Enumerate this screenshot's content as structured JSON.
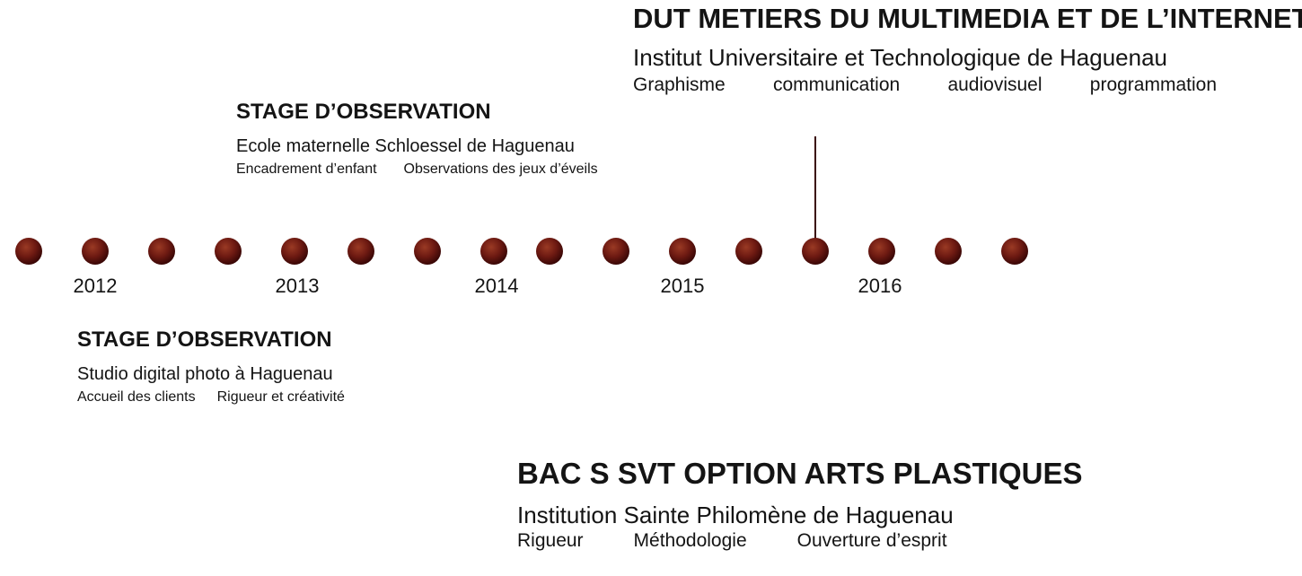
{
  "years": [
    "2012",
    "2013",
    "2014",
    "2015",
    "2016"
  ],
  "dot_count": 16,
  "colors": {
    "dot_dark": "#3a0706",
    "dot_mid": "#6e1a12",
    "dot_highlight": "#9a3a24",
    "connector": "#b5341d",
    "connector_dark": "#3a0a08",
    "text": "#141414"
  },
  "entries": {
    "dut": {
      "title": "DUT METIERS DU MULTIMEDIA ET DE L’INTERNET",
      "subtitle": "Institut Universitaire et Technologique de Haguenau",
      "skills": [
        "Graphisme",
        "communication",
        "audiovisuel",
        "programmation"
      ]
    },
    "stage_ecole": {
      "title": "STAGE D’OBSERVATION",
      "subtitle": "Ecole maternelle Schloessel de Haguenau",
      "skills": [
        "Encadrement d’enfant",
        "Observations des jeux d’éveils"
      ]
    },
    "stage_studio": {
      "title": "STAGE D’OBSERVATION",
      "subtitle": "Studio digital photo à Haguenau",
      "skills": [
        "Accueil des clients",
        "Rigueur et créativité"
      ]
    },
    "bac": {
      "title": "BAC S SVT OPTION ARTS PLASTIQUES",
      "subtitle": "Institution Sainte Philomène de Haguenau",
      "skills": [
        "Rigueur",
        "Méthodologie",
        "Ouverture d’esprit"
      ]
    }
  }
}
